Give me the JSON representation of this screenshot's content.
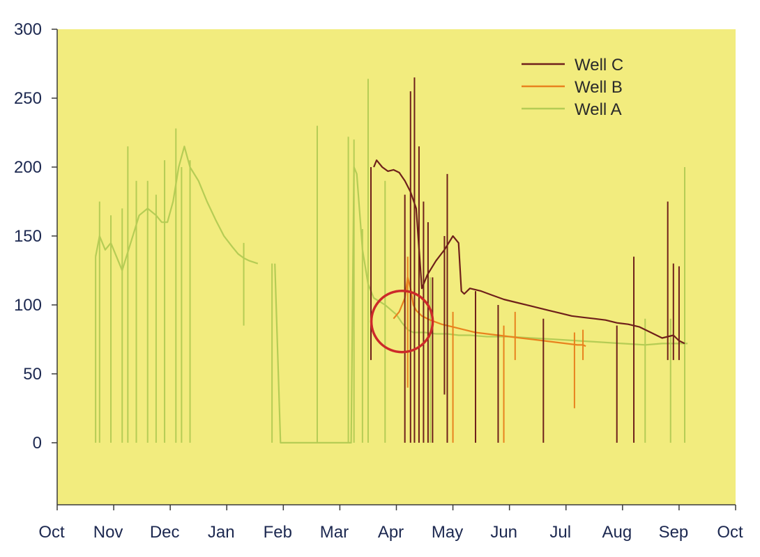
{
  "chart_data": {
    "type": "line",
    "title": "",
    "xlabel": "",
    "ylabel": "",
    "x_ticks": [
      "Oct",
      "Nov",
      "Dec",
      "Jan",
      "Feb",
      "Mar",
      "Apr",
      "May",
      "Jun",
      "Jul",
      "Aug",
      "Sep",
      "Oct"
    ],
    "y_ticks": [
      0,
      50,
      100,
      150,
      200,
      250,
      300
    ],
    "xlim": [
      0,
      12
    ],
    "ylim": [
      -45,
      300
    ],
    "grid": false,
    "legend_position": "top-right",
    "colors": {
      "plot_background": "#f2ec7e",
      "axis": "#3a3a3a",
      "highlight_circle": "#cc2a2a"
    },
    "annotation": {
      "type": "circle",
      "x": 6.1,
      "y": 88,
      "color": "#cc2a2a"
    },
    "series": [
      {
        "name": "Well C",
        "color": "#6e1f1a",
        "x": [
          5.6,
          5.65,
          5.75,
          5.85,
          5.95,
          6.05,
          6.15,
          6.25,
          6.35,
          6.45,
          6.55,
          6.7,
          6.85,
          7.0,
          7.1,
          7.15,
          7.2,
          7.3,
          7.5,
          7.7,
          7.9,
          8.1,
          8.3,
          8.5,
          8.7,
          8.9,
          9.1,
          9.3,
          9.5,
          9.7,
          9.9,
          10.1,
          10.3,
          10.5,
          10.7,
          10.9,
          11.0,
          11.1
        ],
        "y": [
          200,
          205,
          200,
          197,
          198,
          196,
          190,
          182,
          170,
          112,
          122,
          132,
          140,
          150,
          145,
          110,
          108,
          112,
          110,
          107,
          104,
          102,
          100,
          98,
          96,
          94,
          92,
          91,
          90,
          89,
          87,
          86,
          84,
          80,
          76,
          78,
          74,
          72
        ],
        "spikes": [
          {
            "x": 5.55,
            "lo": 60,
            "hi": 200
          },
          {
            "x": 6.15,
            "lo": 0,
            "hi": 180
          },
          {
            "x": 6.25,
            "lo": 0,
            "hi": 255
          },
          {
            "x": 6.32,
            "lo": 0,
            "hi": 265
          },
          {
            "x": 6.4,
            "lo": 0,
            "hi": 215
          },
          {
            "x": 6.48,
            "lo": 0,
            "hi": 175
          },
          {
            "x": 6.56,
            "lo": 0,
            "hi": 160
          },
          {
            "x": 6.64,
            "lo": 0,
            "hi": 120
          },
          {
            "x": 6.9,
            "lo": 0,
            "hi": 195
          },
          {
            "x": 6.85,
            "lo": 35,
            "hi": 150
          },
          {
            "x": 7.4,
            "lo": 0,
            "hi": 110
          },
          {
            "x": 7.8,
            "lo": 0,
            "hi": 100
          },
          {
            "x": 8.6,
            "lo": 0,
            "hi": 90
          },
          {
            "x": 9.9,
            "lo": 0,
            "hi": 85
          },
          {
            "x": 10.2,
            "lo": 0,
            "hi": 135
          },
          {
            "x": 10.8,
            "lo": 60,
            "hi": 175
          },
          {
            "x": 10.9,
            "lo": 60,
            "hi": 130
          },
          {
            "x": 11.0,
            "lo": 60,
            "hi": 128
          }
        ]
      },
      {
        "name": "Well B",
        "color": "#e8821e",
        "x": [
          5.95,
          6.05,
          6.15,
          6.2,
          6.25,
          6.3,
          6.35,
          6.45,
          6.6,
          6.8,
          7.0,
          7.2,
          7.4,
          7.6,
          7.8,
          8.0,
          8.2,
          8.4,
          8.6,
          8.8,
          9.0,
          9.2,
          9.3,
          9.35
        ],
        "y": [
          90,
          95,
          105,
          120,
          112,
          100,
          96,
          92,
          89,
          86,
          84,
          82,
          80,
          79,
          78,
          77,
          76,
          75,
          74,
          73,
          72,
          71,
          71,
          70
        ],
        "spikes": [
          {
            "x": 6.2,
            "lo": 40,
            "hi": 135
          },
          {
            "x": 7.0,
            "lo": 0,
            "hi": 95
          },
          {
            "x": 7.9,
            "lo": 0,
            "hi": 85
          },
          {
            "x": 8.1,
            "lo": 60,
            "hi": 95
          },
          {
            "x": 9.15,
            "lo": 25,
            "hi": 80
          },
          {
            "x": 9.3,
            "lo": 60,
            "hi": 82
          }
        ]
      },
      {
        "name": "Well A",
        "color": "#b5cc55",
        "x": [
          0.68,
          0.75,
          0.85,
          0.95,
          1.05,
          1.15,
          1.3,
          1.45,
          1.6,
          1.75,
          1.85,
          1.95,
          2.05,
          2.15,
          2.25,
          2.35,
          2.5,
          2.65,
          2.8,
          2.95,
          3.1,
          3.2,
          3.3,
          3.4,
          3.55
        ],
        "y": [
          135,
          150,
          140,
          145,
          135,
          125,
          145,
          165,
          170,
          165,
          160,
          160,
          175,
          200,
          215,
          200,
          190,
          175,
          162,
          150,
          142,
          137,
          134,
          132,
          130
        ],
        "segments": [
          {
            "x": [
              3.85,
              3.95,
              4.05,
              4.2,
              4.5,
              4.8,
              5.1,
              5.2,
              5.25,
              5.3,
              5.4,
              5.5,
              5.6,
              5.8,
              6.0,
              6.1,
              6.2,
              6.3,
              6.5,
              6.7,
              6.9,
              7.1,
              7.3,
              7.6,
              8.0,
              8.4,
              8.8,
              9.2,
              9.6,
              10.0,
              10.4,
              10.7,
              11.0,
              11.15
            ],
            "y": [
              130,
              0,
              0,
              0,
              0,
              0,
              0,
              0,
              200,
              195,
              140,
              115,
              105,
              100,
              93,
              87,
              82,
              80,
              80,
              79,
              79,
              78,
              78,
              77,
              77,
              76,
              75,
              74,
              73,
              72,
              71,
              72,
              72,
              72
            ]
          }
        ],
        "spikes": [
          {
            "x": 0.68,
            "lo": 0,
            "hi": 135
          },
          {
            "x": 0.75,
            "lo": 0,
            "hi": 175
          },
          {
            "x": 0.95,
            "lo": 0,
            "hi": 165
          },
          {
            "x": 1.15,
            "lo": 0,
            "hi": 170
          },
          {
            "x": 1.25,
            "lo": 0,
            "hi": 215
          },
          {
            "x": 1.4,
            "lo": 0,
            "hi": 190
          },
          {
            "x": 1.6,
            "lo": 0,
            "hi": 190
          },
          {
            "x": 1.75,
            "lo": 0,
            "hi": 180
          },
          {
            "x": 1.9,
            "lo": 0,
            "hi": 205
          },
          {
            "x": 2.1,
            "lo": 0,
            "hi": 228
          },
          {
            "x": 2.2,
            "lo": 0,
            "hi": 200
          },
          {
            "x": 2.35,
            "lo": 0,
            "hi": 205
          },
          {
            "x": 3.3,
            "lo": 85,
            "hi": 145
          },
          {
            "x": 3.8,
            "lo": 0,
            "hi": 130
          },
          {
            "x": 4.6,
            "lo": 0,
            "hi": 230
          },
          {
            "x": 5.15,
            "lo": 0,
            "hi": 222
          },
          {
            "x": 5.25,
            "lo": 0,
            "hi": 220
          },
          {
            "x": 5.4,
            "lo": 0,
            "hi": 155
          },
          {
            "x": 5.5,
            "lo": 0,
            "hi": 264
          },
          {
            "x": 5.8,
            "lo": 0,
            "hi": 190
          },
          {
            "x": 6.6,
            "lo": 0,
            "hi": 120
          },
          {
            "x": 10.4,
            "lo": 0,
            "hi": 90
          },
          {
            "x": 10.85,
            "lo": 0,
            "hi": 90
          },
          {
            "x": 11.1,
            "lo": 0,
            "hi": 200
          }
        ]
      }
    ]
  }
}
